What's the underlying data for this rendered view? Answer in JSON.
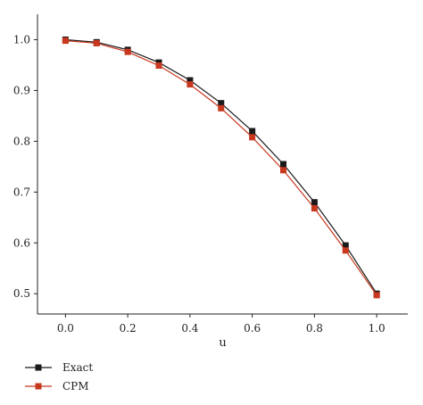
{
  "chart_data": {
    "type": "line",
    "xlabel": "u",
    "ylabel": "",
    "xlim": [
      -0.09,
      1.1
    ],
    "ylim": [
      0.46,
      1.05
    ],
    "xticks": [
      "0.0",
      "0.2",
      "0.4",
      "0.6",
      "0.8",
      "1.0"
    ],
    "yticks": [
      "0.5",
      "0.6",
      "0.7",
      "0.8",
      "0.9",
      "1.0"
    ],
    "grid": false,
    "legend_position": "bottom-left",
    "x": [
      0.0,
      0.1,
      0.2,
      0.3,
      0.4,
      0.5,
      0.6,
      0.7,
      0.8,
      0.9,
      1.0
    ],
    "series": [
      {
        "name": "Exact",
        "color": "#1a1a1a",
        "marker": "square",
        "values": [
          1.0,
          0.995,
          0.98,
          0.955,
          0.92,
          0.875,
          0.82,
          0.755,
          0.68,
          0.595,
          0.5
        ]
      },
      {
        "name": "CPM",
        "color": "#c8381e",
        "marker": "square",
        "values": [
          0.998,
          0.993,
          0.976,
          0.949,
          0.912,
          0.865,
          0.808,
          0.743,
          0.668,
          0.585,
          0.497
        ]
      }
    ]
  }
}
